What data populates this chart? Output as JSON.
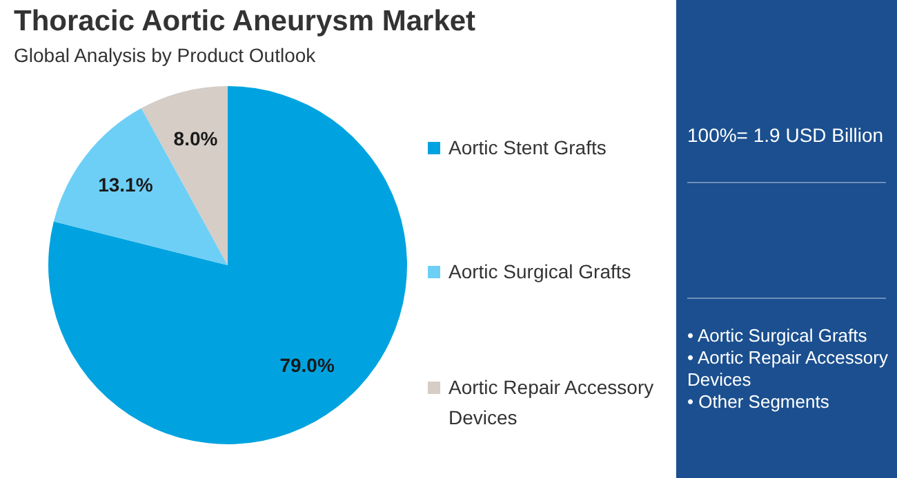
{
  "chart_data": {
    "type": "pie",
    "title": "Thoracic Aortic Aneurysm Market",
    "subtitle": "Global Analysis by Product Outlook",
    "categories": [
      "Aortic Stent Grafts",
      "Aortic Surgical Grafts",
      "Aortic Repair Accessory Devices"
    ],
    "values": [
      79.0,
      13.1,
      8.0
    ],
    "colors": [
      "#00a3e0",
      "#6dcff6",
      "#d5cdc6"
    ],
    "value_labels": [
      "79.0%",
      "13.1%",
      "8.0%"
    ],
    "legend": "right",
    "annotations": [
      "100%= 1.9 USD Billion",
      "• Aortic Surgical Grafts",
      "• Aortic Repair Accessory Devices",
      "• Other Segments"
    ]
  }
}
